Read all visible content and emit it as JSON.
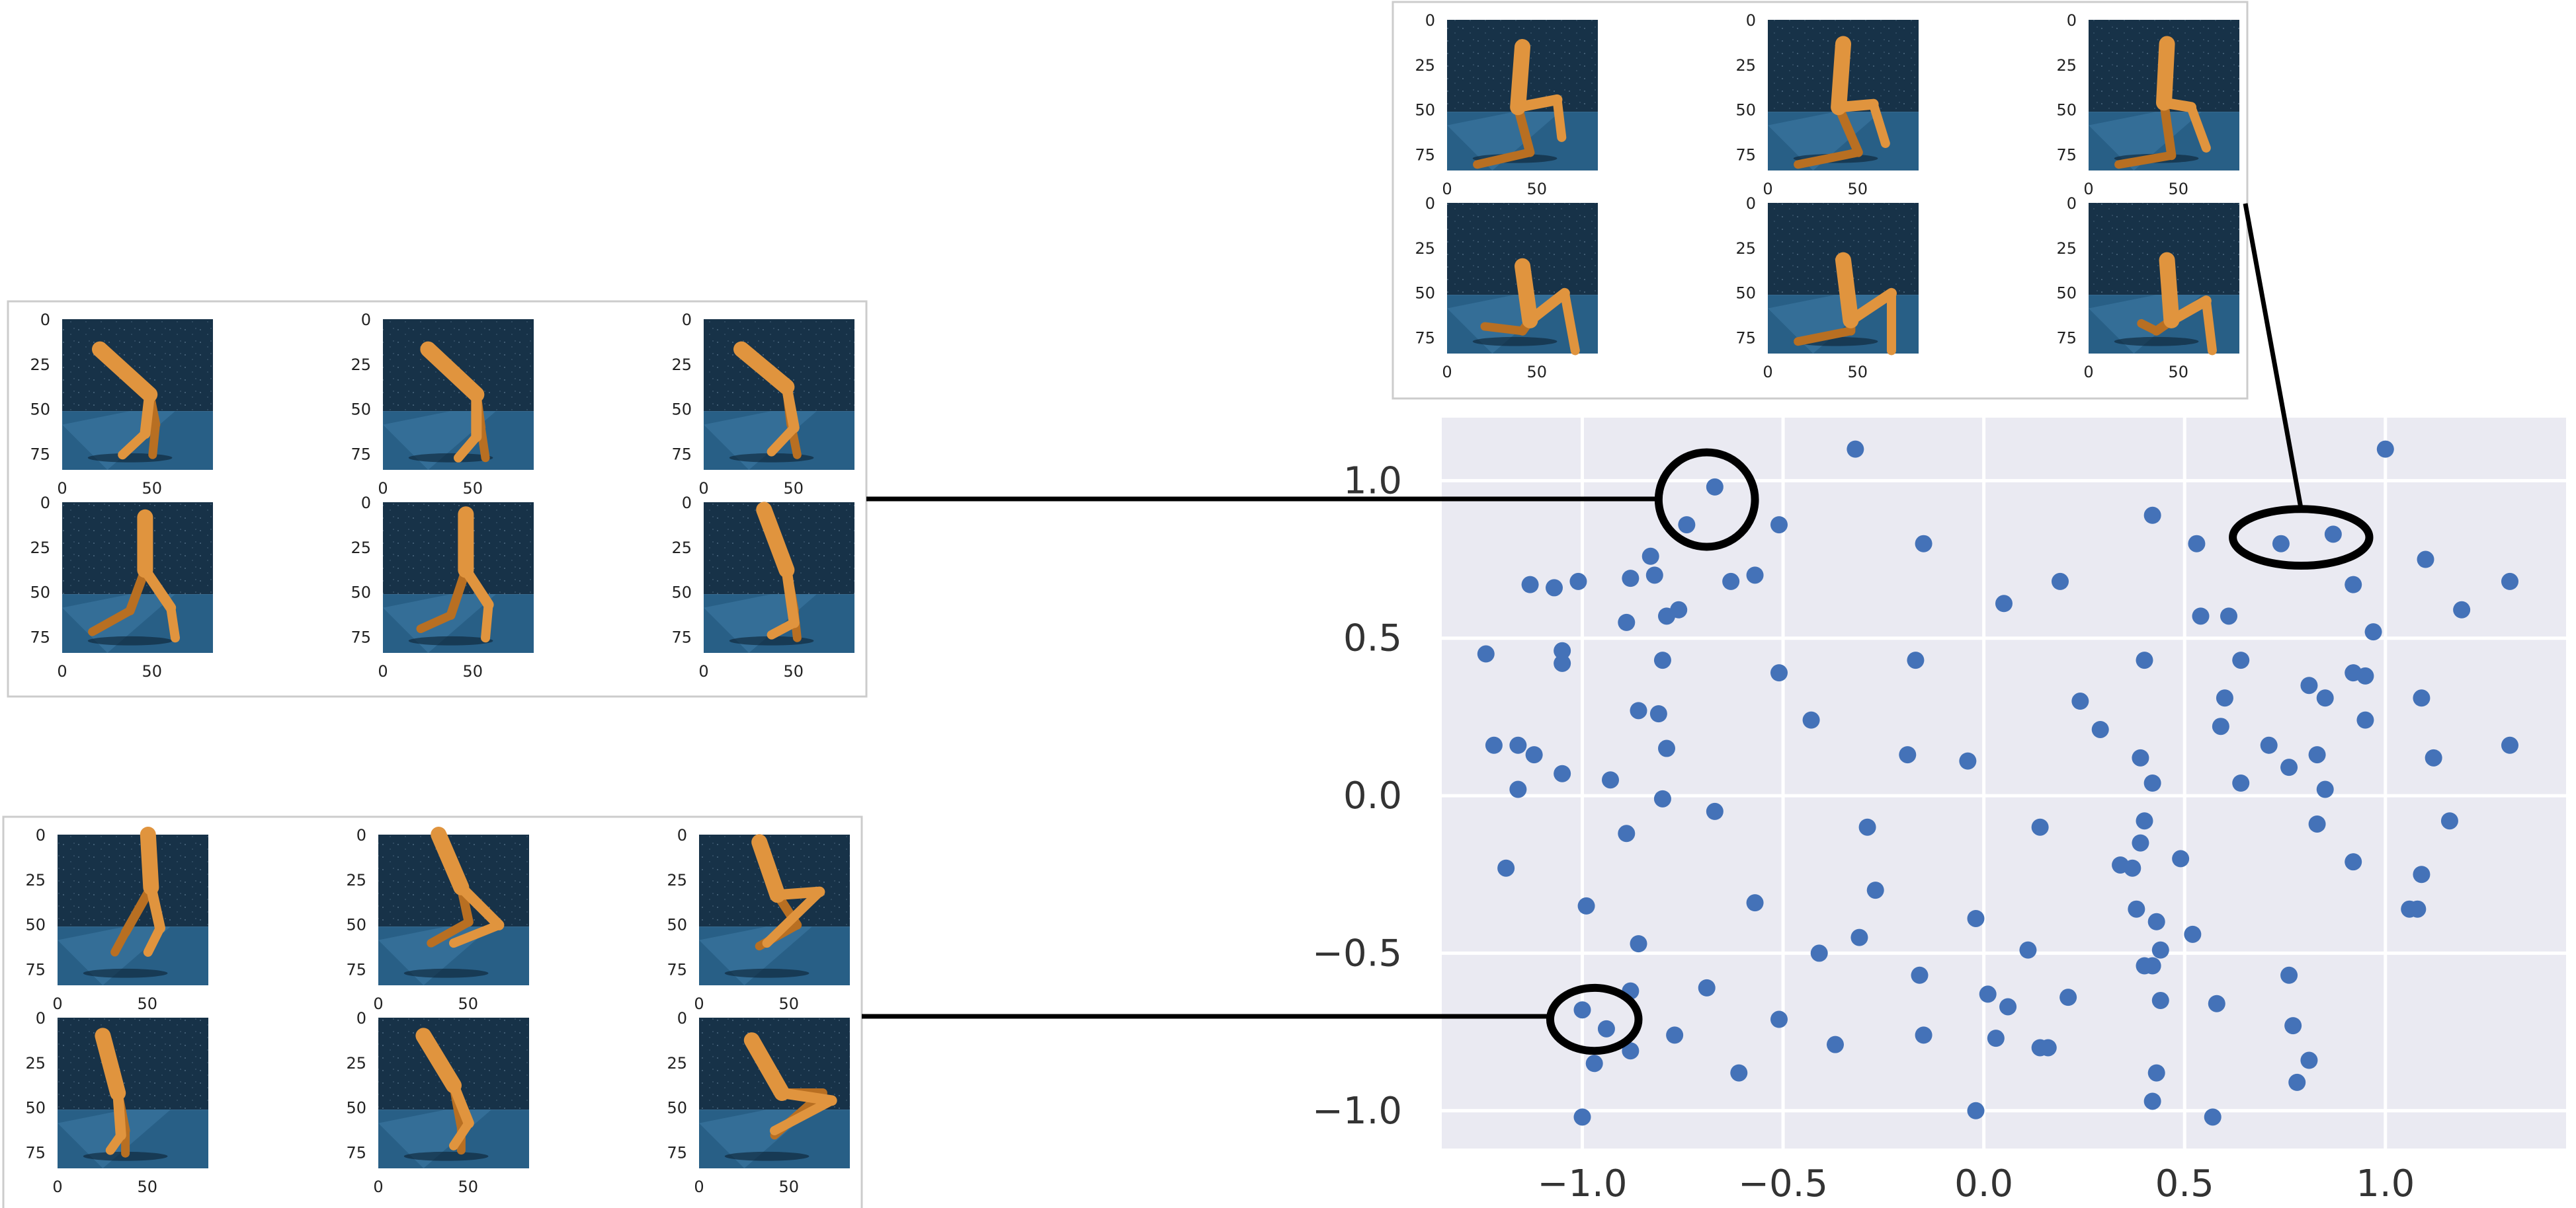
{
  "colors": {
    "point": "#4472b8",
    "plot_bg": "#eaeaf2",
    "grid": "#ffffff",
    "sky": "#173248",
    "floor": "#285f86",
    "floor_light": "#3f7ea7",
    "leg": "#e0943e",
    "leg_dark": "#b86f22",
    "connector": "#000000"
  },
  "chart_data": {
    "type": "scatter",
    "title": "",
    "xlabel": "",
    "ylabel": "",
    "xlim": [
      -1.35,
      1.45
    ],
    "ylim": [
      -1.12,
      1.2
    ],
    "xticks": [
      -1.0,
      -0.5,
      0.0,
      0.5,
      1.0
    ],
    "yticks": [
      -1.0,
      -0.5,
      0.0,
      0.5,
      1.0
    ],
    "xtick_labels": [
      "−1.0",
      "−0.5",
      "0.0",
      "0.5",
      "1.0"
    ],
    "ytick_labels": [
      "−1.0",
      "−0.5",
      "0.0",
      "0.5",
      "1.0"
    ],
    "grid": true,
    "legend": "none",
    "points": [
      [
        -0.32,
        1.1
      ],
      [
        1.0,
        1.1
      ],
      [
        -0.67,
        0.98
      ],
      [
        0.42,
        0.89
      ],
      [
        -0.74,
        0.86
      ],
      [
        -0.51,
        0.86
      ],
      [
        0.87,
        0.83
      ],
      [
        0.74,
        0.8
      ],
      [
        -0.15,
        0.8
      ],
      [
        0.53,
        0.8
      ],
      [
        -0.83,
        0.76
      ],
      [
        1.1,
        0.75
      ],
      [
        1.31,
        0.68
      ],
      [
        -0.57,
        0.7
      ],
      [
        -0.82,
        0.7
      ],
      [
        -0.88,
        0.69
      ],
      [
        -0.63,
        0.68
      ],
      [
        -1.13,
        0.67
      ],
      [
        -1.07,
        0.66
      ],
      [
        -1.01,
        0.68
      ],
      [
        0.19,
        0.68
      ],
      [
        0.92,
        0.67
      ],
      [
        -0.76,
        0.59
      ],
      [
        -0.79,
        0.57
      ],
      [
        0.05,
        0.61
      ],
      [
        1.19,
        0.59
      ],
      [
        0.54,
        0.57
      ],
      [
        0.61,
        0.57
      ],
      [
        -0.89,
        0.55
      ],
      [
        0.97,
        0.52
      ],
      [
        -1.24,
        0.45
      ],
      [
        -1.05,
        0.46
      ],
      [
        -1.05,
        0.42
      ],
      [
        -0.8,
        0.43
      ],
      [
        -0.17,
        0.43
      ],
      [
        0.4,
        0.43
      ],
      [
        0.64,
        0.43
      ],
      [
        -0.51,
        0.39
      ],
      [
        0.92,
        0.39
      ],
      [
        0.95,
        0.38
      ],
      [
        0.81,
        0.35
      ],
      [
        0.24,
        0.3
      ],
      [
        0.6,
        0.31
      ],
      [
        0.85,
        0.31
      ],
      [
        1.09,
        0.31
      ],
      [
        -0.86,
        0.27
      ],
      [
        -0.81,
        0.26
      ],
      [
        -0.43,
        0.24
      ],
      [
        0.29,
        0.21
      ],
      [
        0.59,
        0.22
      ],
      [
        0.95,
        0.24
      ],
      [
        -1.22,
        0.16
      ],
      [
        -1.16,
        0.16
      ],
      [
        -1.12,
        0.13
      ],
      [
        -0.79,
        0.15
      ],
      [
        -0.19,
        0.13
      ],
      [
        0.71,
        0.16
      ],
      [
        0.83,
        0.13
      ],
      [
        1.31,
        0.16
      ],
      [
        -0.04,
        0.11
      ],
      [
        0.39,
        0.12
      ],
      [
        1.12,
        0.12
      ],
      [
        -1.05,
        0.07
      ],
      [
        -0.93,
        0.05
      ],
      [
        0.42,
        0.04
      ],
      [
        0.64,
        0.04
      ],
      [
        0.76,
        0.09
      ],
      [
        -1.16,
        0.02
      ],
      [
        0.85,
        0.02
      ],
      [
        -0.8,
        -0.01
      ],
      [
        -0.67,
        -0.05
      ],
      [
        -0.29,
        -0.1
      ],
      [
        0.14,
        -0.1
      ],
      [
        0.4,
        -0.08
      ],
      [
        0.83,
        -0.09
      ],
      [
        1.16,
        -0.08
      ],
      [
        -0.89,
        -0.12
      ],
      [
        0.39,
        -0.15
      ],
      [
        -1.19,
        -0.23
      ],
      [
        0.34,
        -0.22
      ],
      [
        0.37,
        -0.23
      ],
      [
        0.49,
        -0.2
      ],
      [
        0.92,
        -0.21
      ],
      [
        1.09,
        -0.25
      ],
      [
        -0.27,
        -0.3
      ],
      [
        -0.99,
        -0.35
      ],
      [
        -0.57,
        -0.34
      ],
      [
        0.38,
        -0.36
      ],
      [
        1.06,
        -0.36
      ],
      [
        1.08,
        -0.36
      ],
      [
        -0.02,
        -0.39
      ],
      [
        0.43,
        -0.4
      ],
      [
        -0.31,
        -0.45
      ],
      [
        0.52,
        -0.44
      ],
      [
        -0.86,
        -0.47
      ],
      [
        -0.41,
        -0.5
      ],
      [
        0.11,
        -0.49
      ],
      [
        0.44,
        -0.49
      ],
      [
        0.4,
        -0.54
      ],
      [
        0.42,
        -0.54
      ],
      [
        -0.16,
        -0.57
      ],
      [
        0.76,
        -0.57
      ],
      [
        -0.69,
        -0.61
      ],
      [
        0.01,
        -0.63
      ],
      [
        0.06,
        -0.67
      ],
      [
        0.21,
        -0.64
      ],
      [
        0.44,
        -0.65
      ],
      [
        0.58,
        -0.66
      ],
      [
        -0.51,
        -0.71
      ],
      [
        -0.88,
        -0.62
      ],
      [
        -1.0,
        -0.68
      ],
      [
        -0.94,
        -0.74
      ],
      [
        0.77,
        -0.73
      ],
      [
        -0.15,
        -0.76
      ],
      [
        -0.77,
        -0.76
      ],
      [
        0.03,
        -0.77
      ],
      [
        -0.37,
        -0.79
      ],
      [
        0.14,
        -0.8
      ],
      [
        0.16,
        -0.8
      ],
      [
        -0.88,
        -0.81
      ],
      [
        -0.97,
        -0.85
      ],
      [
        0.81,
        -0.84
      ],
      [
        -0.61,
        -0.88
      ],
      [
        0.43,
        -0.88
      ],
      [
        0.78,
        -0.91
      ],
      [
        0.42,
        -0.97
      ],
      [
        -0.02,
        -1.0
      ],
      [
        -1.0,
        -1.02
      ],
      [
        0.57,
        -1.02
      ]
    ],
    "highlights": [
      {
        "name": "top-left-group",
        "cx": -0.69,
        "cy": 0.94,
        "rx": 0.12,
        "ry": 0.15
      },
      {
        "name": "top-right-group",
        "cx": 0.79,
        "cy": 0.82,
        "rx": 0.17,
        "ry": 0.09
      },
      {
        "name": "bottom-left-group",
        "cx": -0.97,
        "cy": -0.71,
        "rx": 0.11,
        "ry": 0.1
      }
    ]
  },
  "image_axes": {
    "x_ticks": [
      0,
      50
    ],
    "x_tick_labels": [
      "0",
      "50"
    ],
    "y_ticks": [
      0,
      25,
      50,
      75
    ],
    "y_tick_labels": [
      "0",
      "25",
      "50",
      "75"
    ],
    "extent": 84
  },
  "panels": [
    {
      "name": "panel-top-right",
      "link": "top-right-group",
      "rows": 2,
      "cols": 3,
      "poses": [
        [
          [
            0.5,
            0.18
          ],
          [
            0.47,
            0.58
          ],
          [
            0.73,
            0.53
          ],
          [
            0.76,
            0.78
          ],
          [
            0.55,
            0.88
          ],
          [
            0.2,
            0.96
          ]
        ],
        [
          [
            0.5,
            0.16
          ],
          [
            0.47,
            0.58
          ],
          [
            0.7,
            0.56
          ],
          [
            0.78,
            0.82
          ],
          [
            0.6,
            0.88
          ],
          [
            0.2,
            0.96
          ]
        ],
        [
          [
            0.52,
            0.16
          ],
          [
            0.5,
            0.55
          ],
          [
            0.68,
            0.58
          ],
          [
            0.78,
            0.85
          ],
          [
            0.55,
            0.9
          ],
          [
            0.2,
            0.96
          ]
        ],
        [
          [
            0.5,
            0.42
          ],
          [
            0.55,
            0.78
          ],
          [
            0.78,
            0.6
          ],
          [
            0.85,
            0.98
          ],
          [
            0.5,
            0.85
          ],
          [
            0.25,
            0.82
          ]
        ],
        [
          [
            0.5,
            0.38
          ],
          [
            0.55,
            0.78
          ],
          [
            0.82,
            0.6
          ],
          [
            0.82,
            0.98
          ],
          [
            0.55,
            0.85
          ],
          [
            0.2,
            0.92
          ]
        ],
        [
          [
            0.52,
            0.38
          ],
          [
            0.55,
            0.78
          ],
          [
            0.78,
            0.65
          ],
          [
            0.82,
            0.98
          ],
          [
            0.45,
            0.85
          ],
          [
            0.35,
            0.8
          ]
        ]
      ]
    },
    {
      "name": "panel-middle-left",
      "link": "top-left-group",
      "rows": 2,
      "cols": 3,
      "poses": [
        [
          [
            0.25,
            0.2
          ],
          [
            0.58,
            0.5
          ],
          [
            0.55,
            0.76
          ],
          [
            0.4,
            0.9
          ],
          [
            0.62,
            0.7
          ],
          [
            0.6,
            0.9
          ]
        ],
        [
          [
            0.3,
            0.2
          ],
          [
            0.62,
            0.5
          ],
          [
            0.62,
            0.78
          ],
          [
            0.5,
            0.92
          ],
          [
            0.65,
            0.72
          ],
          [
            0.68,
            0.92
          ]
        ],
        [
          [
            0.25,
            0.2
          ],
          [
            0.55,
            0.45
          ],
          [
            0.6,
            0.72
          ],
          [
            0.45,
            0.88
          ],
          [
            0.58,
            0.7
          ],
          [
            0.62,
            0.9
          ]
        ],
        [
          [
            0.55,
            0.1
          ],
          [
            0.55,
            0.45
          ],
          [
            0.72,
            0.7
          ],
          [
            0.75,
            0.9
          ],
          [
            0.45,
            0.72
          ],
          [
            0.2,
            0.86
          ]
        ],
        [
          [
            0.55,
            0.08
          ],
          [
            0.55,
            0.45
          ],
          [
            0.7,
            0.68
          ],
          [
            0.68,
            0.9
          ],
          [
            0.45,
            0.75
          ],
          [
            0.25,
            0.84
          ]
        ],
        [
          [
            0.4,
            0.05
          ],
          [
            0.55,
            0.45
          ],
          [
            0.6,
            0.8
          ],
          [
            0.45,
            0.88
          ],
          [
            0.6,
            0.72
          ],
          [
            0.62,
            0.9
          ]
        ]
      ]
    },
    {
      "name": "panel-bottom-left",
      "link": "bottom-left-group",
      "rows": 2,
      "cols": 3,
      "poses": [
        [
          [
            0.6,
            0.0
          ],
          [
            0.62,
            0.35
          ],
          [
            0.68,
            0.62
          ],
          [
            0.6,
            0.78
          ],
          [
            0.45,
            0.65
          ],
          [
            0.38,
            0.78
          ]
        ],
        [
          [
            0.4,
            0.0
          ],
          [
            0.55,
            0.35
          ],
          [
            0.8,
            0.6
          ],
          [
            0.5,
            0.72
          ],
          [
            0.6,
            0.58
          ],
          [
            0.35,
            0.72
          ]
        ],
        [
          [
            0.4,
            0.05
          ],
          [
            0.52,
            0.4
          ],
          [
            0.8,
            0.38
          ],
          [
            0.45,
            0.72
          ],
          [
            0.65,
            0.6
          ],
          [
            0.4,
            0.74
          ]
        ],
        [
          [
            0.3,
            0.12
          ],
          [
            0.4,
            0.5
          ],
          [
            0.42,
            0.78
          ],
          [
            0.35,
            0.88
          ],
          [
            0.45,
            0.75
          ],
          [
            0.45,
            0.9
          ]
        ],
        [
          [
            0.3,
            0.12
          ],
          [
            0.5,
            0.45
          ],
          [
            0.6,
            0.7
          ],
          [
            0.5,
            0.85
          ],
          [
            0.55,
            0.72
          ],
          [
            0.55,
            0.88
          ]
        ],
        [
          [
            0.35,
            0.15
          ],
          [
            0.55,
            0.5
          ],
          [
            0.88,
            0.55
          ],
          [
            0.5,
            0.75
          ],
          [
            0.82,
            0.5
          ],
          [
            0.5,
            0.78
          ]
        ]
      ]
    }
  ]
}
